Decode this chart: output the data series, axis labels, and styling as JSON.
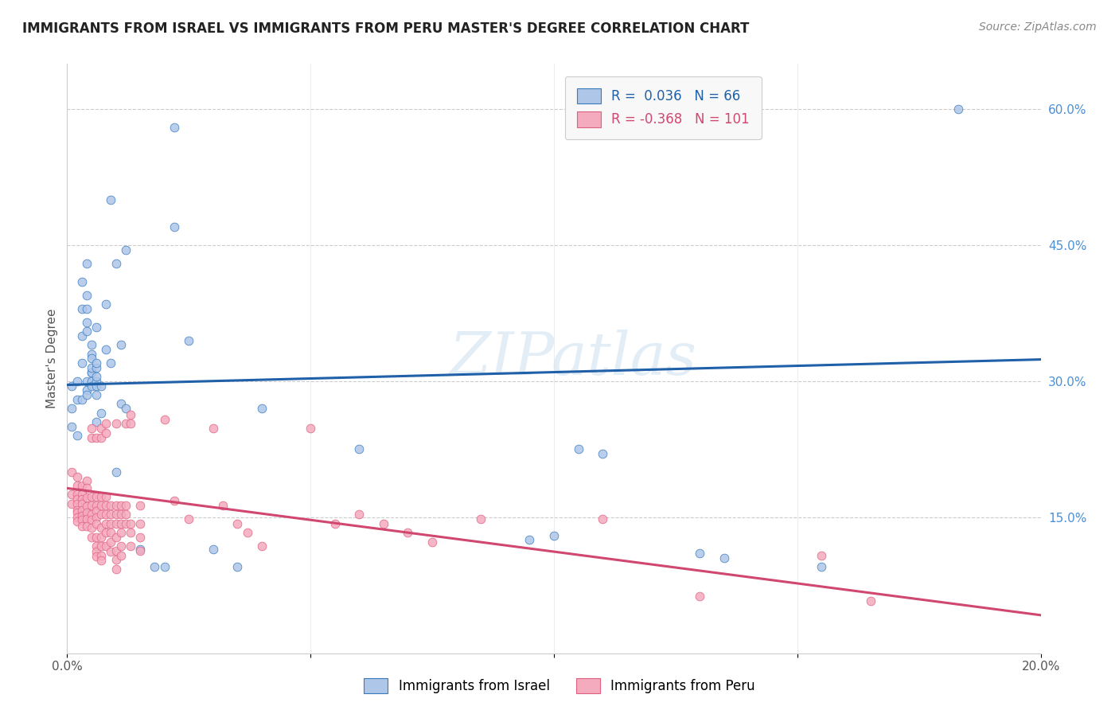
{
  "title": "IMMIGRANTS FROM ISRAEL VS IMMIGRANTS FROM PERU MASTER'S DEGREE CORRELATION CHART",
  "source": "Source: ZipAtlas.com",
  "ylabel": "Master's Degree",
  "watermark": "ZIPatlas",
  "israel_R": 0.036,
  "israel_N": 66,
  "peru_R": -0.368,
  "peru_N": 101,
  "xlim": [
    0.0,
    0.2
  ],
  "ylim": [
    0.0,
    0.65
  ],
  "xtick_positions": [
    0.0,
    0.05,
    0.1,
    0.15,
    0.2
  ],
  "xtick_labels": [
    "0.0%",
    "",
    "",
    "",
    "20.0%"
  ],
  "ytick_right_pos": [
    0.15,
    0.3,
    0.45,
    0.6
  ],
  "ytick_right_labels": [
    "15.0%",
    "30.0%",
    "45.0%",
    "60.0%"
  ],
  "israel_color": "#aec6e8",
  "peru_color": "#f4abbe",
  "israel_edge_color": "#3a7bbf",
  "peru_edge_color": "#e06080",
  "israel_line_color": "#2060a8",
  "peru_line_color": "#d04870",
  "grid_color": "#cccccc",
  "title_color": "#222222",
  "right_label_color": "#4a90d9",
  "israel_line_x0": 0.0,
  "israel_line_y0": 0.296,
  "israel_line_x1": 0.2,
  "israel_line_y1": 0.324,
  "peru_line_x0": 0.0,
  "peru_line_y0": 0.182,
  "peru_line_x1": 0.2,
  "peru_line_y1": 0.042,
  "israel_scatter": [
    [
      0.001,
      0.295
    ],
    [
      0.001,
      0.27
    ],
    [
      0.001,
      0.25
    ],
    [
      0.002,
      0.3
    ],
    [
      0.002,
      0.24
    ],
    [
      0.002,
      0.28
    ],
    [
      0.003,
      0.38
    ],
    [
      0.003,
      0.41
    ],
    [
      0.003,
      0.32
    ],
    [
      0.003,
      0.35
    ],
    [
      0.003,
      0.28
    ],
    [
      0.004,
      0.43
    ],
    [
      0.004,
      0.395
    ],
    [
      0.004,
      0.38
    ],
    [
      0.004,
      0.355
    ],
    [
      0.004,
      0.365
    ],
    [
      0.004,
      0.3
    ],
    [
      0.004,
      0.29
    ],
    [
      0.004,
      0.285
    ],
    [
      0.005,
      0.34
    ],
    [
      0.005,
      0.33
    ],
    [
      0.005,
      0.31
    ],
    [
      0.005,
      0.31
    ],
    [
      0.005,
      0.3
    ],
    [
      0.005,
      0.325
    ],
    [
      0.005,
      0.315
    ],
    [
      0.005,
      0.295
    ],
    [
      0.006,
      0.315
    ],
    [
      0.006,
      0.3
    ],
    [
      0.006,
      0.295
    ],
    [
      0.006,
      0.255
    ],
    [
      0.006,
      0.36
    ],
    [
      0.006,
      0.32
    ],
    [
      0.006,
      0.305
    ],
    [
      0.006,
      0.285
    ],
    [
      0.007,
      0.295
    ],
    [
      0.007,
      0.265
    ],
    [
      0.008,
      0.385
    ],
    [
      0.008,
      0.335
    ],
    [
      0.009,
      0.5
    ],
    [
      0.009,
      0.32
    ],
    [
      0.01,
      0.43
    ],
    [
      0.01,
      0.2
    ],
    [
      0.011,
      0.275
    ],
    [
      0.011,
      0.34
    ],
    [
      0.012,
      0.445
    ],
    [
      0.012,
      0.27
    ],
    [
      0.015,
      0.115
    ],
    [
      0.018,
      0.095
    ],
    [
      0.02,
      0.095
    ],
    [
      0.022,
      0.58
    ],
    [
      0.022,
      0.47
    ],
    [
      0.025,
      0.345
    ],
    [
      0.03,
      0.115
    ],
    [
      0.035,
      0.095
    ],
    [
      0.04,
      0.27
    ],
    [
      0.06,
      0.225
    ],
    [
      0.095,
      0.125
    ],
    [
      0.1,
      0.13
    ],
    [
      0.105,
      0.225
    ],
    [
      0.11,
      0.22
    ],
    [
      0.13,
      0.11
    ],
    [
      0.135,
      0.105
    ],
    [
      0.155,
      0.095
    ],
    [
      0.183,
      0.6
    ]
  ],
  "peru_scatter": [
    [
      0.001,
      0.2
    ],
    [
      0.001,
      0.175
    ],
    [
      0.001,
      0.165
    ],
    [
      0.002,
      0.195
    ],
    [
      0.002,
      0.185
    ],
    [
      0.002,
      0.175
    ],
    [
      0.002,
      0.17
    ],
    [
      0.002,
      0.165
    ],
    [
      0.002,
      0.158
    ],
    [
      0.002,
      0.155
    ],
    [
      0.002,
      0.15
    ],
    [
      0.002,
      0.145
    ],
    [
      0.003,
      0.185
    ],
    [
      0.003,
      0.175
    ],
    [
      0.003,
      0.17
    ],
    [
      0.003,
      0.165
    ],
    [
      0.003,
      0.158
    ],
    [
      0.003,
      0.152
    ],
    [
      0.003,
      0.147
    ],
    [
      0.003,
      0.14
    ],
    [
      0.004,
      0.19
    ],
    [
      0.004,
      0.182
    ],
    [
      0.004,
      0.172
    ],
    [
      0.004,
      0.162
    ],
    [
      0.004,
      0.155
    ],
    [
      0.004,
      0.148
    ],
    [
      0.004,
      0.14
    ],
    [
      0.005,
      0.248
    ],
    [
      0.005,
      0.238
    ],
    [
      0.005,
      0.173
    ],
    [
      0.005,
      0.163
    ],
    [
      0.005,
      0.153
    ],
    [
      0.005,
      0.147
    ],
    [
      0.005,
      0.138
    ],
    [
      0.005,
      0.128
    ],
    [
      0.006,
      0.238
    ],
    [
      0.006,
      0.173
    ],
    [
      0.006,
      0.163
    ],
    [
      0.006,
      0.157
    ],
    [
      0.006,
      0.15
    ],
    [
      0.006,
      0.143
    ],
    [
      0.006,
      0.128
    ],
    [
      0.006,
      0.118
    ],
    [
      0.006,
      0.112
    ],
    [
      0.006,
      0.107
    ],
    [
      0.007,
      0.248
    ],
    [
      0.007,
      0.238
    ],
    [
      0.007,
      0.173
    ],
    [
      0.007,
      0.163
    ],
    [
      0.007,
      0.153
    ],
    [
      0.007,
      0.138
    ],
    [
      0.007,
      0.128
    ],
    [
      0.007,
      0.118
    ],
    [
      0.007,
      0.108
    ],
    [
      0.007,
      0.102
    ],
    [
      0.008,
      0.253
    ],
    [
      0.008,
      0.243
    ],
    [
      0.008,
      0.173
    ],
    [
      0.008,
      0.163
    ],
    [
      0.008,
      0.153
    ],
    [
      0.008,
      0.143
    ],
    [
      0.008,
      0.133
    ],
    [
      0.008,
      0.118
    ],
    [
      0.009,
      0.163
    ],
    [
      0.009,
      0.153
    ],
    [
      0.009,
      0.143
    ],
    [
      0.009,
      0.133
    ],
    [
      0.009,
      0.123
    ],
    [
      0.009,
      0.112
    ],
    [
      0.01,
      0.253
    ],
    [
      0.01,
      0.163
    ],
    [
      0.01,
      0.153
    ],
    [
      0.01,
      0.143
    ],
    [
      0.01,
      0.128
    ],
    [
      0.01,
      0.113
    ],
    [
      0.01,
      0.103
    ],
    [
      0.01,
      0.093
    ],
    [
      0.011,
      0.163
    ],
    [
      0.011,
      0.153
    ],
    [
      0.011,
      0.143
    ],
    [
      0.011,
      0.133
    ],
    [
      0.011,
      0.118
    ],
    [
      0.011,
      0.108
    ],
    [
      0.012,
      0.253
    ],
    [
      0.012,
      0.163
    ],
    [
      0.012,
      0.153
    ],
    [
      0.012,
      0.143
    ],
    [
      0.013,
      0.263
    ],
    [
      0.013,
      0.253
    ],
    [
      0.013,
      0.143
    ],
    [
      0.013,
      0.133
    ],
    [
      0.013,
      0.118
    ],
    [
      0.015,
      0.163
    ],
    [
      0.015,
      0.143
    ],
    [
      0.015,
      0.128
    ],
    [
      0.015,
      0.113
    ],
    [
      0.02,
      0.258
    ],
    [
      0.022,
      0.168
    ],
    [
      0.025,
      0.148
    ],
    [
      0.03,
      0.248
    ],
    [
      0.032,
      0.163
    ],
    [
      0.035,
      0.143
    ],
    [
      0.037,
      0.133
    ],
    [
      0.04,
      0.118
    ],
    [
      0.05,
      0.248
    ],
    [
      0.055,
      0.143
    ],
    [
      0.06,
      0.153
    ],
    [
      0.065,
      0.143
    ],
    [
      0.07,
      0.133
    ],
    [
      0.075,
      0.123
    ],
    [
      0.085,
      0.148
    ],
    [
      0.11,
      0.148
    ],
    [
      0.13,
      0.063
    ],
    [
      0.155,
      0.108
    ],
    [
      0.165,
      0.058
    ]
  ]
}
